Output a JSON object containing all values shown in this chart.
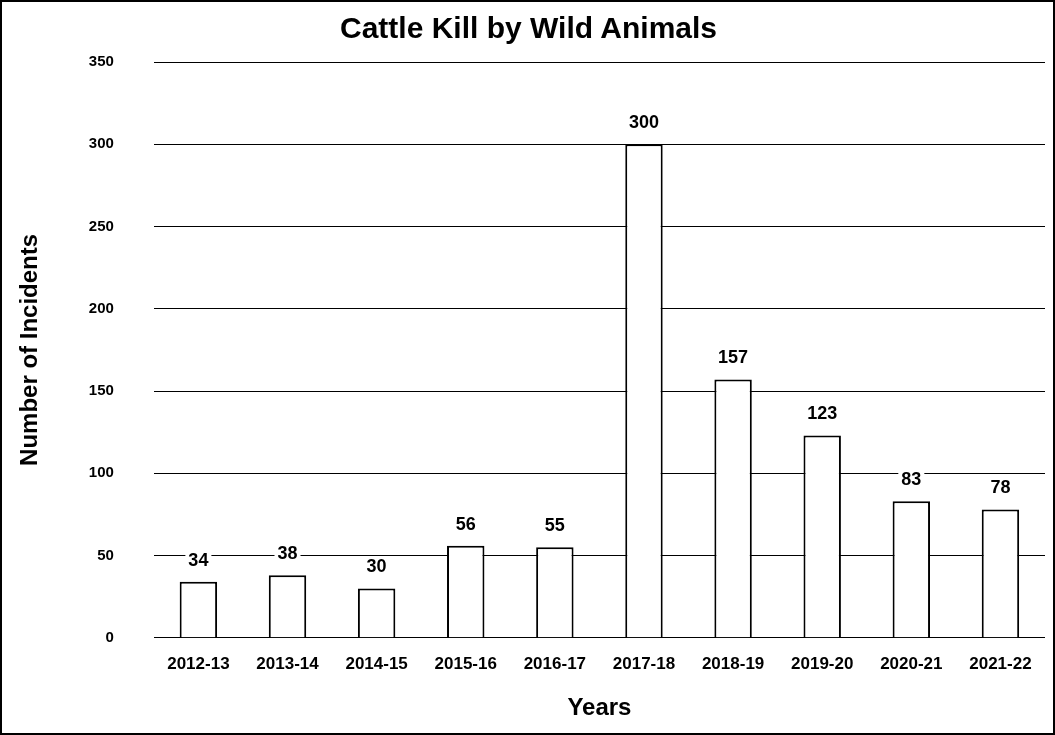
{
  "chart_data": {
    "type": "bar",
    "title": "Cattle Kill by Wild Animals",
    "xlabel": "Years",
    "ylabel": "Number of Incidents",
    "categories": [
      "2012-13",
      "2013-14",
      "2014-15",
      "2015-16",
      "2016-17",
      "2017-18",
      "2018-19",
      "2019-20",
      "2020-21",
      "2021-22"
    ],
    "values": [
      34,
      38,
      30,
      56,
      55,
      300,
      157,
      123,
      83,
      78
    ],
    "color": "#ffffff",
    "ylim": [
      0,
      350
    ],
    "yticks": [
      0,
      50,
      100,
      150,
      200,
      250,
      300,
      350
    ],
    "grid": "y",
    "legend": false,
    "data_labels": true
  }
}
